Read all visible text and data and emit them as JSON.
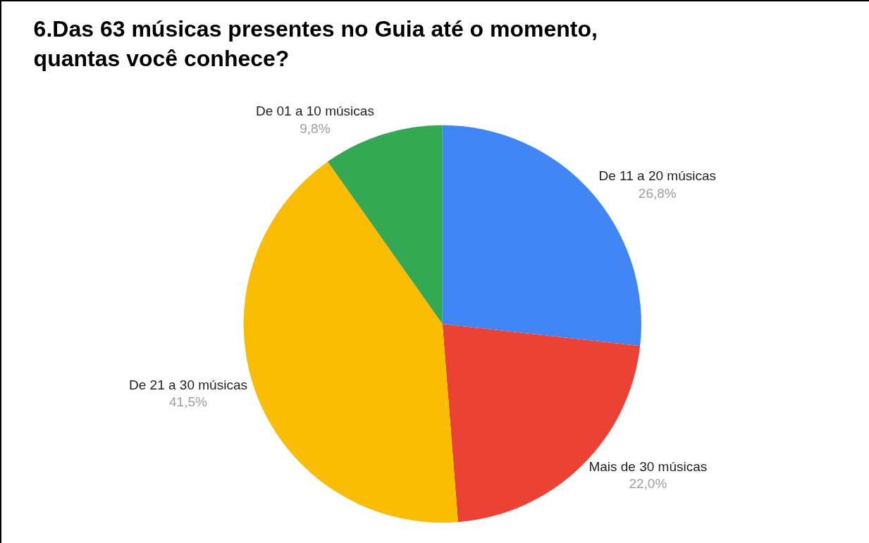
{
  "chart_data": {
    "type": "pie",
    "title": "6.Das 63 músicas presentes no Guia até o momento,\nquantas você conhece?",
    "categories": [
      "De 11 a 20 músicas",
      "Mais de 30 músicas",
      "De 21 a 30 músicas",
      "De 01 a 10 músicas"
    ],
    "values": [
      26.8,
      22.0,
      41.5,
      9.8
    ],
    "value_labels": [
      "26,8%",
      "22,0%",
      "41,5%",
      "9,8%"
    ],
    "colors": [
      "#4285f4",
      "#ea4335",
      "#fbbc04",
      "#34a853"
    ],
    "legend": false
  }
}
